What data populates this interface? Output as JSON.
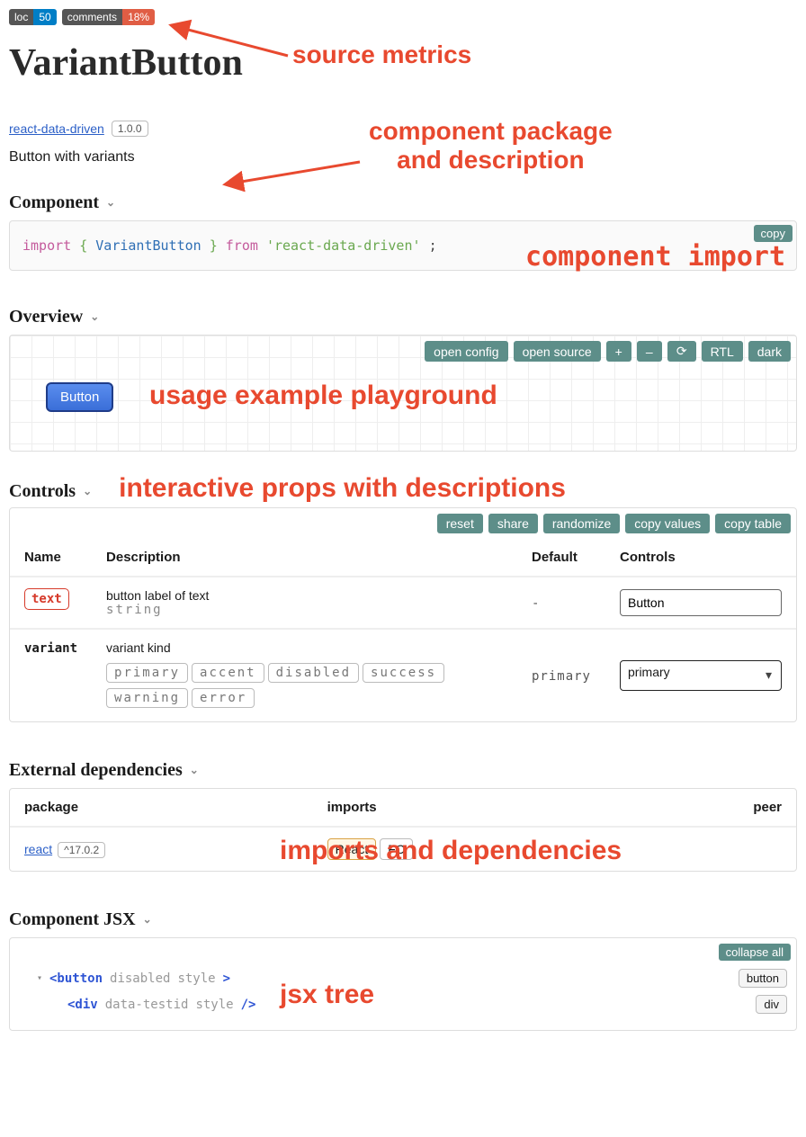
{
  "badges": {
    "loc_label": "loc",
    "loc_value": "50",
    "comments_label": "comments",
    "comments_value": "18%"
  },
  "annotations": {
    "source_metrics": "source metrics",
    "pkg_desc": "component package and description",
    "comp_import": "component import",
    "playground": "usage example playground",
    "controls": "interactive props with descriptions",
    "deps": "imports and dependencies",
    "jsx": "jsx tree",
    "color": "#e8492f"
  },
  "title": "VariantButton",
  "package": {
    "name": "react-data-driven",
    "version": "1.0.0",
    "href": "#"
  },
  "description": "Button with variants",
  "sections": {
    "component": "Component",
    "overview": "Overview",
    "controls": "Controls",
    "deps": "External dependencies",
    "jsx": "Component JSX"
  },
  "import_code": {
    "kw_import": "import",
    "brace_l": "{",
    "ident": "VariantButton",
    "brace_r": "}",
    "kw_from": "from",
    "str": "'react-data-driven'",
    "semi": ";",
    "copy_label": "copy"
  },
  "overview": {
    "toolbar": {
      "open_config": "open config",
      "open_source": "open source",
      "zoom_in": "+",
      "zoom_out": "–",
      "reset": "⟳",
      "rtl": "RTL",
      "dark": "dark"
    },
    "demo_button_label": "Button"
  },
  "controls": {
    "toolbar": {
      "reset": "reset",
      "share": "share",
      "randomize": "randomize",
      "copy_values": "copy values",
      "copy_table": "copy table"
    },
    "columns": {
      "name": "Name",
      "description": "Description",
      "default": "Default",
      "controls": "Controls"
    },
    "rows": [
      {
        "name": "text",
        "required": true,
        "desc": "button label of text",
        "type": "string",
        "default": "-",
        "control_kind": "text",
        "control_value": "Button"
      },
      {
        "name": "variant",
        "required": false,
        "desc": "variant kind",
        "type_enum": [
          "primary",
          "accent",
          "disabled",
          "success",
          "warning",
          "error"
        ],
        "default": "primary",
        "control_kind": "select",
        "control_value": "primary"
      }
    ]
  },
  "deps": {
    "columns": {
      "package": "package",
      "imports": "imports",
      "peer": "peer"
    },
    "rows": [
      {
        "pkg": "react",
        "version": "^17.0.2",
        "imports": [
          "React",
          "FC"
        ],
        "highlight_first": true
      }
    ]
  },
  "jsx": {
    "collapse_all": "collapse all",
    "rows": [
      {
        "indent": 0,
        "open": true,
        "tag": "button",
        "attrs": [
          "disabled",
          "style"
        ],
        "close": ">",
        "pill": "button"
      },
      {
        "indent": 1,
        "open": false,
        "tag": "div",
        "attrs": [
          "data-testid",
          "style"
        ],
        "close": "/>",
        "pill": "div"
      }
    ]
  },
  "colors": {
    "teal": "#5d8e89",
    "annot": "#e8492f",
    "link": "#2b5fc7"
  }
}
